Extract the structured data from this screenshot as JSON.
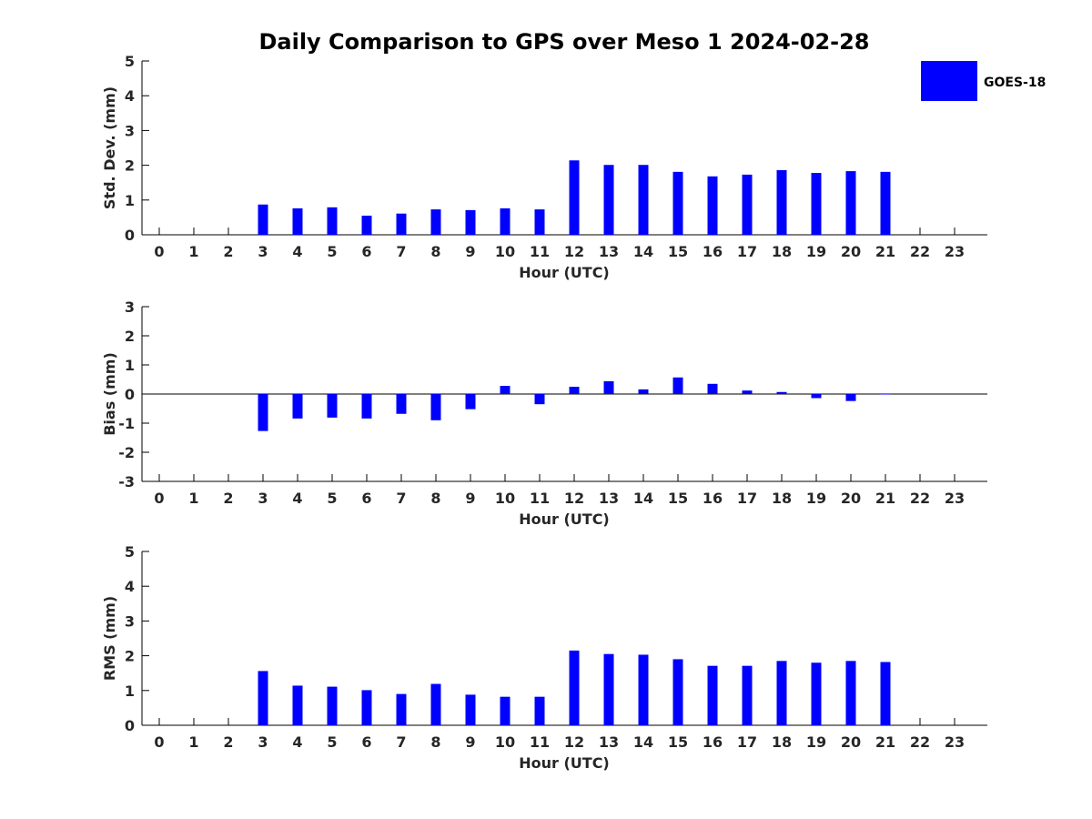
{
  "chart_data": {
    "title": "Daily Comparison to GPS over Meso 1 2024-02-28",
    "legend": {
      "label": "GOES-18",
      "color": "#0000ff",
      "placement": "top-right"
    },
    "panels": [
      {
        "type": "bar",
        "ylabel": "Std. Dev. (mm)",
        "xlabel": "Hour (UTC)",
        "ylim": [
          0,
          5
        ],
        "yticks": [
          "0",
          "1",
          "2",
          "3",
          "4",
          "5"
        ],
        "categories": [
          "0",
          "1",
          "2",
          "3",
          "4",
          "5",
          "6",
          "7",
          "8",
          "9",
          "10",
          "11",
          "12",
          "13",
          "14",
          "15",
          "16",
          "17",
          "18",
          "19",
          "20",
          "21",
          "22",
          "23"
        ],
        "values": [
          null,
          null,
          null,
          0.87,
          0.76,
          0.79,
          0.55,
          0.61,
          0.73,
          0.71,
          0.76,
          0.73,
          2.14,
          2.01,
          2.01,
          1.81,
          1.68,
          1.73,
          1.86,
          1.78,
          1.83,
          1.81,
          null,
          null
        ],
        "zero_line": false
      },
      {
        "type": "bar",
        "ylabel": "Bias (mm)",
        "xlabel": "Hour (UTC)",
        "ylim": [
          -3,
          3
        ],
        "yticks": [
          "-3",
          "-2",
          "-1",
          "0",
          "1",
          "2",
          "3"
        ],
        "categories": [
          "0",
          "1",
          "2",
          "3",
          "4",
          "5",
          "6",
          "7",
          "8",
          "9",
          "10",
          "11",
          "12",
          "13",
          "14",
          "15",
          "16",
          "17",
          "18",
          "19",
          "20",
          "21",
          "22",
          "23"
        ],
        "values": [
          null,
          null,
          null,
          -1.27,
          -0.84,
          -0.81,
          -0.84,
          -0.68,
          -0.9,
          -0.52,
          0.28,
          -0.35,
          0.25,
          0.44,
          0.16,
          0.57,
          0.35,
          0.12,
          0.07,
          -0.14,
          -0.24,
          0.0,
          null,
          null
        ],
        "zero_line": true
      },
      {
        "type": "bar",
        "ylabel": "RMS (mm)",
        "xlabel": "Hour (UTC)",
        "ylim": [
          0,
          5
        ],
        "yticks": [
          "0",
          "1",
          "2",
          "3",
          "4",
          "5"
        ],
        "categories": [
          "0",
          "1",
          "2",
          "3",
          "4",
          "5",
          "6",
          "7",
          "8",
          "9",
          "10",
          "11",
          "12",
          "13",
          "14",
          "15",
          "16",
          "17",
          "18",
          "19",
          "20",
          "21",
          "22",
          "23"
        ],
        "values": [
          null,
          null,
          null,
          1.56,
          1.14,
          1.11,
          1.01,
          0.9,
          1.19,
          0.88,
          0.82,
          0.82,
          2.15,
          2.05,
          2.03,
          1.9,
          1.71,
          1.71,
          1.85,
          1.8,
          1.85,
          1.82,
          null,
          null
        ],
        "zero_line": false
      }
    ]
  }
}
